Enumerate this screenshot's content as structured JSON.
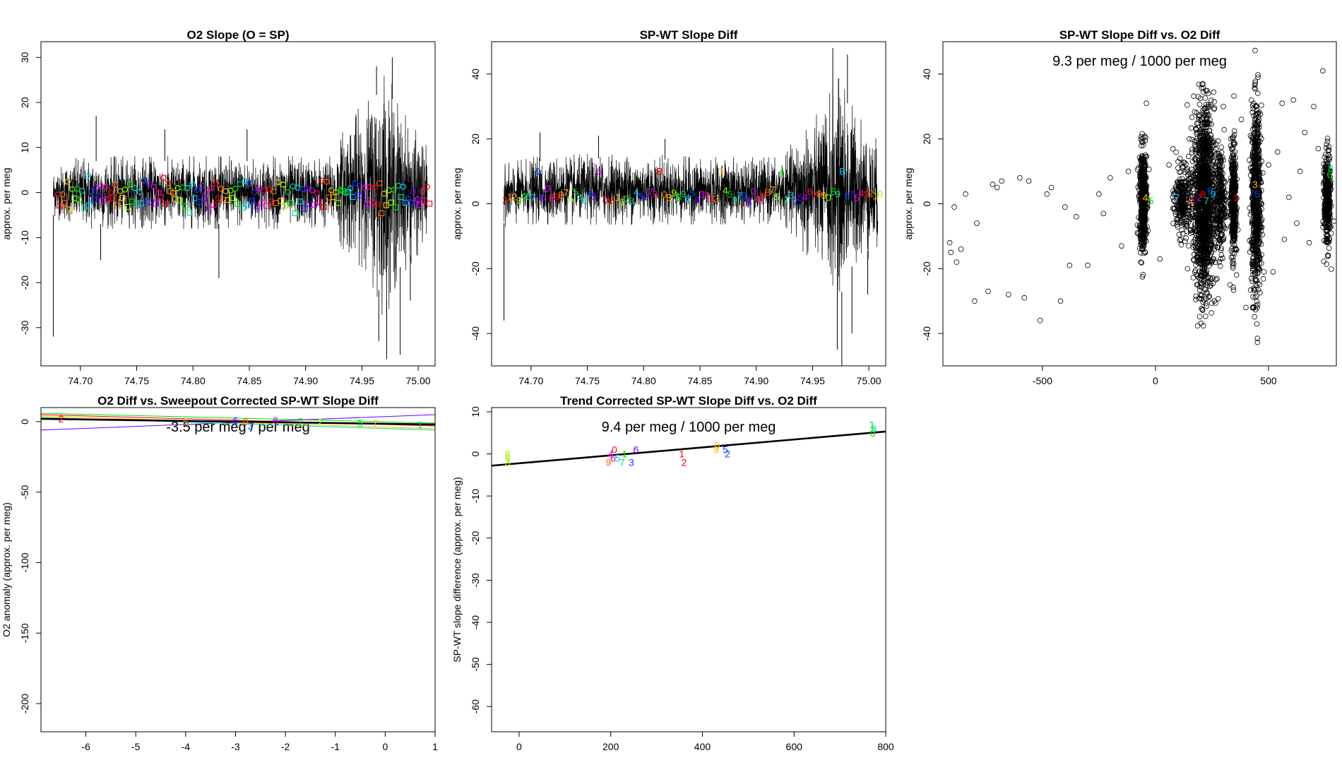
{
  "colors": [
    "#ff0000",
    "#ff6600",
    "#ffbb00",
    "#88ff00",
    "#00dd00",
    "#00dd88",
    "#00ccff",
    "#0044ff",
    "#6600ff",
    "#dd00ff",
    "#ff0088"
  ],
  "chart_data": [
    {
      "id": "p1",
      "type": "line",
      "title": "O2 Slope (O = SP)",
      "xlabel": "",
      "ylabel": "approx. per meg",
      "xlim": [
        74.665,
        75.015
      ],
      "ylim": [
        -38.5,
        33.5
      ],
      "xticks": [
        74.7,
        74.75,
        74.8,
        74.85,
        74.9,
        74.95,
        75.0
      ],
      "xtick_labels": [
        "74.70",
        "74.75",
        "74.80",
        "74.85",
        "74.90",
        "74.95",
        "75.00"
      ],
      "yticks": [
        -30,
        -20,
        -10,
        0,
        10,
        20,
        30
      ],
      "ytick_labels": [
        "-30",
        "-20",
        "-10",
        "0",
        "10",
        "20",
        "30"
      ],
      "envelope": [
        {
          "x": 74.676,
          "lo": -5,
          "hi": 5
        },
        {
          "x": 74.7,
          "lo": -7,
          "hi": 7
        },
        {
          "x": 74.75,
          "lo": -7,
          "hi": 7
        },
        {
          "x": 74.8,
          "lo": -7,
          "hi": 7
        },
        {
          "x": 74.85,
          "lo": -7,
          "hi": 7
        },
        {
          "x": 74.9,
          "lo": -7,
          "hi": 7
        },
        {
          "x": 74.925,
          "lo": -7,
          "hi": 7
        },
        {
          "x": 74.935,
          "lo": -12,
          "hi": 14
        },
        {
          "x": 74.955,
          "lo": -15,
          "hi": 18
        },
        {
          "x": 74.97,
          "lo": -25,
          "hi": 25
        },
        {
          "x": 74.985,
          "lo": -16,
          "hi": 16
        },
        {
          "x": 75.008,
          "lo": -10,
          "hi": 9
        }
      ],
      "spikes": [
        {
          "x": 74.676,
          "y": -32
        },
        {
          "x": 74.714,
          "y": 17
        },
        {
          "x": 74.718,
          "y": -15
        },
        {
          "x": 74.775,
          "y": 14
        },
        {
          "x": 74.823,
          "y": -19
        },
        {
          "x": 74.848,
          "y": 14
        },
        {
          "x": 74.963,
          "y": 28
        },
        {
          "x": 74.965,
          "y": -33
        },
        {
          "x": 74.972,
          "y": -37
        },
        {
          "x": 74.977,
          "y": 30
        },
        {
          "x": 74.984,
          "y": -36
        },
        {
          "x": 74.993,
          "y": -24
        }
      ],
      "markers": {
        "x_start": 74.68,
        "x_end": 75.008,
        "count": 78,
        "y_circle": 1.0,
        "y_square": -2.2,
        "jitter": 1.6
      }
    },
    {
      "id": "p2",
      "type": "line",
      "title": "SP-WT Slope Diff",
      "xlabel": "",
      "ylabel": "approx. per meg",
      "xlim": [
        74.665,
        75.015
      ],
      "ylim": [
        -50,
        50
      ],
      "xticks": [
        74.7,
        74.75,
        74.8,
        74.85,
        74.9,
        74.95,
        75.0
      ],
      "xtick_labels": [
        "74.70",
        "74.75",
        "74.80",
        "74.85",
        "74.90",
        "74.95",
        "75.00"
      ],
      "yticks": [
        -40,
        -20,
        0,
        20,
        40
      ],
      "ytick_labels": [
        "-40",
        "-20",
        "0",
        "20",
        "40"
      ],
      "envelope": [
        {
          "x": 74.676,
          "lo": -6,
          "hi": 11
        },
        {
          "x": 74.7,
          "lo": -5,
          "hi": 13
        },
        {
          "x": 74.75,
          "lo": -5,
          "hi": 14
        },
        {
          "x": 74.8,
          "lo": -5,
          "hi": 14
        },
        {
          "x": 74.85,
          "lo": -5,
          "hi": 13
        },
        {
          "x": 74.9,
          "lo": -5,
          "hi": 13
        },
        {
          "x": 74.925,
          "lo": -5,
          "hi": 13
        },
        {
          "x": 74.935,
          "lo": -10,
          "hi": 19
        },
        {
          "x": 74.955,
          "lo": -17,
          "hi": 25
        },
        {
          "x": 74.975,
          "lo": -28,
          "hi": 35
        },
        {
          "x": 74.99,
          "lo": -15,
          "hi": 25
        },
        {
          "x": 75.008,
          "lo": -14,
          "hi": 17
        }
      ],
      "spikes": [
        {
          "x": 74.676,
          "y": -36
        },
        {
          "x": 74.708,
          "y": 22
        },
        {
          "x": 74.76,
          "y": 21
        },
        {
          "x": 74.819,
          "y": 20
        },
        {
          "x": 74.968,
          "y": 48
        },
        {
          "x": 74.972,
          "y": -45
        },
        {
          "x": 74.976,
          "y": -50
        },
        {
          "x": 74.981,
          "y": 46
        },
        {
          "x": 74.985,
          "y": -40
        },
        {
          "x": 74.999,
          "y": -28
        }
      ],
      "digits": {
        "text": "21234579B0B9B7A5414567A2112345679B0B9B96543212345979B0B9B7541325467890B9B67543210",
        "x_start": 74.677,
        "x_end": 75.01,
        "y_base": 2.5,
        "jitter": 2.5,
        "high_every": 13,
        "high_y": 10
      }
    },
    {
      "id": "p3",
      "type": "scatter",
      "title": "SP-WT Slope Diff vs. O2 Diff",
      "xlabel": "",
      "ylabel": "approx. per meg",
      "xlim": [
        -940,
        800
      ],
      "ylim": [
        -50,
        50
      ],
      "xticks": [
        -500,
        0,
        500
      ],
      "xtick_labels": [
        "-500",
        "0",
        "500"
      ],
      "yticks": [
        -40,
        -20,
        0,
        20,
        40
      ],
      "ytick_labels": [
        "-40",
        "-20",
        "0",
        "20",
        "40"
      ],
      "annotation": "9.3 per meg / 1000 per meg",
      "clusters": [
        {
          "x": -55,
          "sx": 8,
          "sy": 8,
          "n": 450
        },
        {
          "x": 120,
          "sx": 18,
          "sy": 5,
          "n": 250
        },
        {
          "x": 215,
          "sx": 22,
          "sy": 14,
          "n": 1300
        },
        {
          "x": 285,
          "sx": 12,
          "sy": 8,
          "n": 250
        },
        {
          "x": 345,
          "sx": 6,
          "sy": 9,
          "n": 350
        },
        {
          "x": 445,
          "sx": 10,
          "sy": 14,
          "n": 700
        },
        {
          "x": 760,
          "sx": 7,
          "sy": 7,
          "n": 350
        }
      ],
      "sparse": [
        {
          "x": -910,
          "y": -12
        },
        {
          "x": -905,
          "y": -15
        },
        {
          "x": -890,
          "y": -1
        },
        {
          "x": -880,
          "y": -18
        },
        {
          "x": -860,
          "y": -14
        },
        {
          "x": -840,
          "y": 3
        },
        {
          "x": -800,
          "y": -30
        },
        {
          "x": -790,
          "y": -6
        },
        {
          "x": -740,
          "y": -27
        },
        {
          "x": -720,
          "y": 6
        },
        {
          "x": -700,
          "y": 5
        },
        {
          "x": -680,
          "y": 7
        },
        {
          "x": -650,
          "y": -28
        },
        {
          "x": -600,
          "y": 8
        },
        {
          "x": -580,
          "y": -29
        },
        {
          "x": -560,
          "y": 7
        },
        {
          "x": -510,
          "y": -36
        },
        {
          "x": -480,
          "y": 3
        },
        {
          "x": -460,
          "y": 5
        },
        {
          "x": -420,
          "y": -30
        },
        {
          "x": -400,
          "y": -1
        },
        {
          "x": -380,
          "y": -19
        },
        {
          "x": -350,
          "y": -4
        },
        {
          "x": -300,
          "y": -19
        },
        {
          "x": -250,
          "y": 3
        },
        {
          "x": -230,
          "y": -3
        },
        {
          "x": -200,
          "y": 8
        },
        {
          "x": -150,
          "y": -13
        },
        {
          "x": -120,
          "y": 10
        },
        {
          "x": -80,
          "y": -9
        },
        {
          "x": -40,
          "y": 31
        },
        {
          "x": 20,
          "y": -17
        },
        {
          "x": 60,
          "y": 12
        },
        {
          "x": 100,
          "y": 13
        },
        {
          "x": 150,
          "y": 20
        },
        {
          "x": 180,
          "y": 23
        },
        {
          "x": 260,
          "y": -30
        },
        {
          "x": 300,
          "y": 30
        },
        {
          "x": 330,
          "y": -25
        },
        {
          "x": 380,
          "y": 26
        },
        {
          "x": 400,
          "y": -32
        },
        {
          "x": 420,
          "y": 21
        },
        {
          "x": 480,
          "y": -21
        },
        {
          "x": 500,
          "y": 12
        },
        {
          "x": 520,
          "y": -21
        },
        {
          "x": 540,
          "y": 16
        },
        {
          "x": 560,
          "y": 31
        },
        {
          "x": 570,
          "y": -11
        },
        {
          "x": 590,
          "y": 2
        },
        {
          "x": 610,
          "y": 32
        },
        {
          "x": 625,
          "y": -6
        },
        {
          "x": 640,
          "y": 10
        },
        {
          "x": 660,
          "y": 22
        },
        {
          "x": 680,
          "y": -12
        },
        {
          "x": 700,
          "y": 30
        },
        {
          "x": 720,
          "y": 17
        },
        {
          "x": 740,
          "y": 41
        }
      ],
      "labels": [
        {
          "t": "4",
          "x": -45,
          "y": 2,
          "c": 2
        },
        {
          "t": "5",
          "x": -20,
          "y": 1,
          "c": 4
        },
        {
          "t": "7",
          "x": 95,
          "y": 2,
          "c": 6
        },
        {
          "t": "2",
          "x": 160,
          "y": 1,
          "c": 0
        },
        {
          "t": "2",
          "x": 195,
          "y": 2,
          "c": 9
        },
        {
          "t": "8",
          "x": 210,
          "y": 3,
          "c": 0
        },
        {
          "t": "7",
          "x": 225,
          "y": 1,
          "c": 5
        },
        {
          "t": "6",
          "x": 240,
          "y": 4,
          "c": 7
        },
        {
          "t": "9",
          "x": 255,
          "y": 3,
          "c": 6
        },
        {
          "t": "1",
          "x": 355,
          "y": 2,
          "c": 0
        },
        {
          "t": "3",
          "x": 440,
          "y": 6,
          "c": 2
        },
        {
          "t": "5",
          "x": 450,
          "y": 3,
          "c": 7
        },
        {
          "t": "6",
          "x": 770,
          "y": 9,
          "c": 4
        },
        {
          "t": "8",
          "x": 775,
          "y": 11,
          "c": 5
        }
      ]
    },
    {
      "id": "p4",
      "type": "line",
      "title": "O2 Diff vs. Sweepout Corrected SP-WT Slope Diff",
      "xlabel": "",
      "ylabel": "O2 anomaly (approx. per meg)",
      "xlim": [
        -6.9,
        1.0
      ],
      "ylim": [
        -220,
        10
      ],
      "xticks": [
        -6,
        -5,
        -4,
        -3,
        -2,
        -1,
        0,
        1
      ],
      "xtick_labels": [
        "-6",
        "-5",
        "-4",
        "-3",
        "-2",
        "-1",
        "0",
        "1"
      ],
      "yticks": [
        -200,
        -150,
        -100,
        -50,
        0
      ],
      "ytick_labels": [
        "-200",
        "-150",
        "-100",
        "-50",
        "0"
      ],
      "annotation": "-3.5 per meg / per meg",
      "lines": [
        {
          "x1": -6.9,
          "y1": 6,
          "x2": 1.0,
          "y2": -1,
          "c": 4
        },
        {
          "x1": -6.9,
          "y1": 5,
          "x2": 1.0,
          "y2": -3,
          "c": 0
        },
        {
          "x1": -6.9,
          "y1": 4,
          "x2": 1.0,
          "y2": -5,
          "c": 2
        },
        {
          "x1": -6.9,
          "y1": -6,
          "x2": 1.0,
          "y2": 5,
          "c": 8
        },
        {
          "x1": -6.9,
          "y1": 3,
          "x2": 1.0,
          "y2": -6,
          "c": 5
        },
        {
          "x1": -6.9,
          "y1": 2,
          "x2": 1.0,
          "y2": -2,
          "c": -1,
          "w": 2.6
        }
      ],
      "labels": [
        {
          "t": "2",
          "x": -6.5,
          "y": 2,
          "c": 0
        },
        {
          "t": "5",
          "x": -4.0,
          "y": 0,
          "c": 1
        },
        {
          "t": "6",
          "x": -3.0,
          "y": 1,
          "c": 8
        },
        {
          "t": "3",
          "x": -2.7,
          "y": -3,
          "c": 7
        },
        {
          "t": "0",
          "x": -2.8,
          "y": 0,
          "c": 1
        },
        {
          "t": "6",
          "x": -2.2,
          "y": 1,
          "c": 9
        },
        {
          "t": "7",
          "x": -1.7,
          "y": 0,
          "c": 4
        },
        {
          "t": "2",
          "x": -1.3,
          "y": 0,
          "c": 3
        },
        {
          "t": "5",
          "x": -0.5,
          "y": -1,
          "c": 4
        },
        {
          "t": "7",
          "x": -0.2,
          "y": -1,
          "c": 2
        },
        {
          "t": "1",
          "x": 0.7,
          "y": -2,
          "c": 5
        }
      ]
    },
    {
      "id": "p5",
      "type": "scatter",
      "title": "Trend Corrected SP-WT Slope Diff vs. O2 Diff",
      "xlabel": "",
      "ylabel": "SP-WT slope difference (approx. per meg)",
      "xlim": [
        -60,
        800
      ],
      "ylim": [
        -66,
        11
      ],
      "xticks": [
        0,
        200,
        400,
        600,
        800
      ],
      "xtick_labels": [
        "0",
        "200",
        "400",
        "600",
        "800"
      ],
      "yticks": [
        -60,
        -50,
        -40,
        -30,
        -20,
        -10,
        0,
        10
      ],
      "ytick_labels": [
        "-60",
        "-50",
        "-40",
        "-30",
        "-20",
        "-10",
        "0",
        "10"
      ],
      "annotation": "9.4 per meg / 1000 per meg",
      "fit": {
        "x1": -60,
        "y1": -2.8,
        "x2": 800,
        "y2": 5.3
      },
      "labels": [
        {
          "t": "9",
          "x": -25,
          "y": -1,
          "c": 2
        },
        {
          "t": "3",
          "x": -25,
          "y": -2,
          "c": 3
        },
        {
          "t": "8",
          "x": -25,
          "y": 0,
          "c": 3
        },
        {
          "t": "9",
          "x": 195,
          "y": -2,
          "c": 1
        },
        {
          "t": "4",
          "x": 200,
          "y": 0,
          "c": 9
        },
        {
          "t": "6",
          "x": 205,
          "y": -1,
          "c": 10
        },
        {
          "t": "0",
          "x": 208,
          "y": 1,
          "c": 0
        },
        {
          "t": "5",
          "x": 215,
          "y": -1,
          "c": 6
        },
        {
          "t": "7",
          "x": 225,
          "y": -2,
          "c": 5
        },
        {
          "t": "1",
          "x": 230,
          "y": 0,
          "c": 4
        },
        {
          "t": "3",
          "x": 245,
          "y": -2,
          "c": 7
        },
        {
          "t": "6",
          "x": 255,
          "y": 1,
          "c": 8
        },
        {
          "t": "1",
          "x": 355,
          "y": 0,
          "c": 0
        },
        {
          "t": "2",
          "x": 360,
          "y": -2,
          "c": 0
        },
        {
          "t": "9",
          "x": 430,
          "y": 1,
          "c": 2
        },
        {
          "t": "0",
          "x": 432,
          "y": 2,
          "c": 2
        },
        {
          "t": "5",
          "x": 450,
          "y": 1,
          "c": 7
        },
        {
          "t": "2",
          "x": 455,
          "y": 0,
          "c": 7
        },
        {
          "t": "1",
          "x": 770,
          "y": 7,
          "c": 4
        },
        {
          "t": "0",
          "x": 772,
          "y": 5,
          "c": 4
        },
        {
          "t": "8",
          "x": 774,
          "y": 6,
          "c": 5
        }
      ]
    }
  ]
}
